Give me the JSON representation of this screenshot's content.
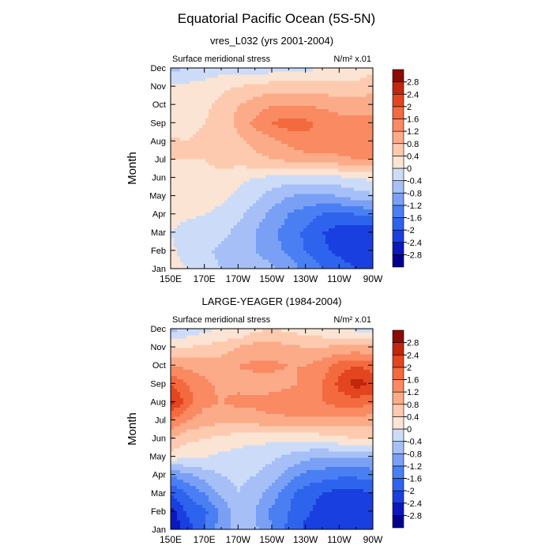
{
  "figure": {
    "title": "Equatorial Pacific Ocean (5S-5N)"
  },
  "colorbar": {
    "levels": [
      -2.8,
      -2.4,
      -2,
      -1.6,
      -1.2,
      -0.8,
      -0.4,
      0,
      0.4,
      0.8,
      1.2,
      1.6,
      2,
      2.4,
      2.8
    ],
    "labels": [
      "-2.8",
      "-2.4",
      "-2",
      "-1.6",
      "-1.2",
      "-0.8",
      "-0.4",
      "0",
      "0.4",
      "0.8",
      "1.2",
      "1.6",
      "2",
      "2.4",
      "2.8"
    ],
    "colors": [
      "#05008b",
      "#0b18bf",
      "#1a3fe0",
      "#2e63ee",
      "#4a7ff3",
      "#7aa0f5",
      "#a6c0f7",
      "#ccdcf8",
      "#fbe4d3",
      "#fdcab0",
      "#fcab88",
      "#f98a62",
      "#f36a3e",
      "#e24520",
      "#c2260c",
      "#8a0c04"
    ]
  },
  "chart_data": [
    {
      "type": "heatmap",
      "title": "vres_L032 (yrs 2001-2004)",
      "left_label": "Surface meridional stress",
      "right_label": "N/m² x.01",
      "xlabel": "",
      "ylabel": "Month",
      "x_ticks": [
        "150E",
        "170E",
        "170W",
        "150W",
        "130W",
        "110W",
        "90W"
      ],
      "y_ticks": [
        "Jan",
        "Feb",
        "Mar",
        "Apr",
        "May",
        "Jun",
        "Jul",
        "Aug",
        "Sep",
        "Oct",
        "Nov",
        "Dec"
      ],
      "x_degrees_east": [
        150,
        160,
        170,
        180,
        190,
        200,
        210,
        220,
        230,
        240,
        250,
        260,
        270
      ],
      "z": [
        [
          0.1,
          0.0,
          -0.2,
          -0.4,
          -0.5,
          -0.6,
          -0.7,
          -1.0,
          -1.3,
          -1.6,
          -1.8,
          -2.0,
          -2.1
        ],
        [
          0.05,
          -0.1,
          -0.3,
          -0.5,
          -0.7,
          -0.8,
          -1.0,
          -1.3,
          -1.6,
          -1.9,
          -2.1,
          -2.3,
          -2.4
        ],
        [
          0.0,
          -0.1,
          -0.2,
          -0.3,
          -0.5,
          -0.8,
          -1.1,
          -1.4,
          -1.7,
          -2.0,
          -2.2,
          -2.3,
          -2.3
        ],
        [
          0.1,
          0.05,
          0.0,
          -0.1,
          -0.3,
          -0.6,
          -0.9,
          -1.2,
          -1.4,
          -1.6,
          -1.7,
          -1.6,
          -1.5
        ],
        [
          0.2,
          0.2,
          0.2,
          0.1,
          -0.1,
          -0.3,
          -0.6,
          -0.8,
          -0.9,
          -0.9,
          -0.8,
          -0.6,
          -0.5
        ],
        [
          0.2,
          0.3,
          0.3,
          0.3,
          0.1,
          0.0,
          -0.1,
          -0.2,
          -0.2,
          -0.1,
          -0.1,
          0.0,
          0.1
        ],
        [
          0.4,
          0.4,
          0.4,
          0.5,
          0.6,
          0.7,
          0.8,
          0.9,
          1.0,
          1.0,
          1.1,
          1.2,
          1.2
        ],
        [
          0.45,
          0.4,
          0.5,
          0.6,
          0.7,
          0.9,
          1.1,
          1.3,
          1.5,
          1.5,
          1.5,
          1.5,
          1.5
        ],
        [
          0.2,
          0.3,
          0.4,
          0.6,
          0.9,
          1.3,
          1.6,
          1.8,
          1.7,
          1.5,
          1.4,
          1.3,
          1.3
        ],
        [
          0.2,
          0.2,
          0.3,
          0.5,
          0.8,
          1.0,
          1.2,
          1.2,
          1.2,
          1.1,
          1.0,
          1.0,
          1.1
        ],
        [
          0.1,
          0.1,
          0.2,
          0.3,
          0.4,
          0.5,
          0.6,
          0.6,
          0.6,
          0.6,
          0.5,
          0.5,
          0.6
        ],
        [
          -0.5,
          -0.4,
          -0.3,
          -0.2,
          -0.2,
          -0.2,
          -0.2,
          -0.2,
          -0.1,
          0.0,
          0.1,
          0.2,
          0.3
        ]
      ],
      "zlim": [
        -2.8,
        2.8
      ]
    },
    {
      "type": "heatmap",
      "title": "LARGE-YEAGER (1984-2004)",
      "left_label": "Surface meridional stress",
      "right_label": "N/m² x.01",
      "xlabel": "",
      "ylabel": "Month",
      "x_ticks": [
        "150E",
        "170E",
        "170W",
        "150W",
        "130W",
        "110W",
        "90W"
      ],
      "y_ticks": [
        "Jan",
        "Feb",
        "Mar",
        "Apr",
        "May",
        "Jun",
        "Jul",
        "Aug",
        "Sep",
        "Oct",
        "Nov",
        "Dec"
      ],
      "x_degrees_east": [
        150,
        160,
        170,
        180,
        190,
        200,
        210,
        220,
        230,
        240,
        250,
        260,
        270
      ],
      "z": [
        [
          -2.8,
          -2.2,
          -1.6,
          -1.0,
          -0.6,
          -0.7,
          -1.2,
          -1.7,
          -2.1,
          -2.3,
          -2.4,
          -2.3,
          -2.0
        ],
        [
          -2.6,
          -1.9,
          -1.7,
          -1.1,
          -0.6,
          -0.8,
          -1.3,
          -1.6,
          -1.9,
          -2.2,
          -2.4,
          -2.4,
          -2.2
        ],
        [
          -2.0,
          -1.6,
          -1.2,
          -0.7,
          -0.4,
          -0.6,
          -1.0,
          -1.5,
          -1.8,
          -2.0,
          -2.2,
          -2.2,
          -2.0
        ],
        [
          -1.2,
          -0.9,
          -0.6,
          -0.4,
          -0.3,
          -0.4,
          -0.6,
          -1.0,
          -1.3,
          -1.4,
          -1.5,
          -1.5,
          -1.4
        ],
        [
          0.2,
          0.1,
          0.0,
          -0.1,
          -0.2,
          -0.2,
          -0.3,
          -0.5,
          -0.7,
          -0.8,
          -0.8,
          -0.8,
          -0.8
        ],
        [
          0.8,
          0.5,
          0.4,
          0.3,
          0.2,
          0.1,
          0.1,
          0.1,
          0.1,
          0.2,
          0.3,
          0.4,
          0.5
        ],
        [
          1.6,
          1.2,
          1.0,
          0.9,
          0.9,
          1.0,
          1.1,
          1.1,
          1.1,
          1.1,
          1.1,
          1.0,
          1.0
        ],
        [
          2.5,
          1.8,
          1.3,
          1.2,
          1.3,
          1.3,
          1.4,
          1.5,
          1.5,
          1.6,
          1.8,
          1.8,
          1.7
        ],
        [
          2.0,
          1.6,
          1.3,
          1.1,
          1.1,
          1.0,
          1.0,
          1.1,
          1.3,
          1.6,
          2.1,
          2.6,
          2.3
        ],
        [
          1.2,
          1.1,
          1.0,
          1.0,
          1.2,
          1.3,
          1.3,
          1.2,
          1.2,
          1.4,
          1.8,
          2.0,
          1.8
        ],
        [
          0.4,
          0.4,
          0.5,
          0.6,
          0.8,
          1.0,
          1.0,
          0.9,
          0.8,
          0.8,
          0.9,
          0.9,
          0.9
        ],
        [
          -0.6,
          -0.3,
          -0.1,
          0.0,
          0.0,
          0.3,
          0.4,
          0.3,
          0.2,
          0.1,
          0.0,
          -0.1,
          -0.3
        ]
      ],
      "zlim": [
        -2.8,
        2.8
      ]
    }
  ]
}
